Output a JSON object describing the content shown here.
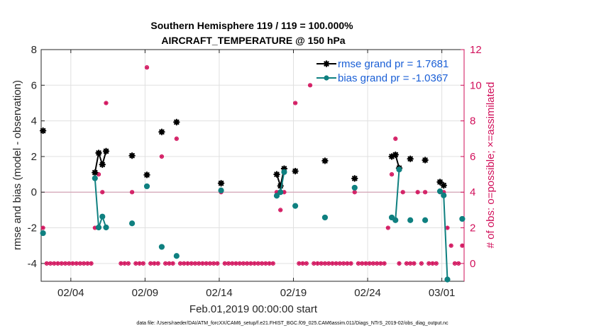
{
  "chart_data": {
    "type": "line",
    "title_line1": "Southern Hemisphere 119 / 119 = 100.000%",
    "title_line2": "AIRCRAFT_TEMPERATURE @ 150 hPa",
    "xlabel": "Feb.01,2019 00:00:00 start",
    "ylabel": "rmse and bias (model - observation)",
    "ylabel_right": "# of obs: o=possible; ×=assimilated",
    "footnote": "data file: /Users/raeder/DAI/ATM_forcXX/CAM6_setup/f.e21.FHIST_BGC.f09_025.CAM6assim.011/Diags_NTrS_2019-02/obs_diag_output.nc",
    "xlim": [
      1,
      29.5
    ],
    "ylim": [
      -5,
      8
    ],
    "ylim_right": [
      -1,
      12
    ],
    "x_ticks": [
      3,
      8,
      13,
      18,
      23,
      28
    ],
    "x_tick_labels": [
      "02/04",
      "02/09",
      "02/14",
      "02/19",
      "02/24",
      "03/01"
    ],
    "y_ticks": [
      -4,
      -2,
      0,
      2,
      4,
      6,
      8
    ],
    "y_tick_labels": [
      "-4",
      "-2",
      "0",
      "2",
      "4",
      "6",
      "8"
    ],
    "y_right_ticks": [
      0,
      2,
      4,
      6,
      8,
      10,
      12
    ],
    "y_right_tick_labels": [
      "0",
      "2",
      "4",
      "6",
      "8",
      "10",
      "12"
    ],
    "grid": true,
    "legend_location": "top-right",
    "colors": {
      "rmse": "#000000",
      "bias": "#0f8080",
      "obs": "#d10f5a",
      "legend_text": "#1a5fd6",
      "grid": "#e0e0e0",
      "zero_line": "#d4a5b6"
    },
    "series": [
      {
        "name": "rmse grand pr = 1.7681",
        "key": "rmse",
        "x": [
          1.125,
          4.625,
          4.875,
          5.125,
          5.375,
          7.125,
          8.125,
          9.125,
          10.125,
          13.125,
          16.875,
          17.125,
          17.375,
          18.125,
          20.125,
          22.125,
          24.625,
          24.875,
          25.125,
          25.875,
          26.875,
          27.875,
          28.125
        ],
        "values": [
          3.45,
          1.1,
          2.2,
          1.55,
          2.3,
          2.05,
          0.97,
          3.38,
          3.93,
          0.5,
          1.0,
          0.35,
          1.32,
          1.18,
          1.76,
          0.77,
          2.0,
          2.1,
          1.35,
          1.87,
          1.8,
          0.57,
          0.38
        ],
        "segments": [
          [
            1,
            2,
            3,
            4
          ],
          [
            10,
            11,
            12
          ],
          [
            16,
            17,
            18
          ],
          [
            21,
            22
          ]
        ]
      },
      {
        "name": "bias grand pr = -1.0367",
        "key": "bias",
        "x": [
          1.125,
          4.625,
          4.875,
          5.125,
          5.375,
          7.125,
          8.125,
          9.125,
          10.125,
          13.125,
          16.875,
          17.125,
          17.375,
          18.125,
          20.125,
          22.125,
          24.625,
          24.875,
          25.125,
          25.875,
          26.875,
          27.875,
          28.125,
          28.375,
          29.375
        ],
        "values": [
          -2.3,
          0.78,
          -1.98,
          -1.37,
          -1.98,
          -1.75,
          0.33,
          -3.07,
          -3.58,
          0.1,
          -0.2,
          0.0,
          1.13,
          -0.77,
          -1.42,
          0.25,
          -1.42,
          -1.57,
          1.27,
          -1.57,
          -1.57,
          0.05,
          -0.18,
          -4.9,
          -1.5
        ],
        "segments": [
          [
            1,
            2,
            3,
            4
          ],
          [
            10,
            11,
            12
          ],
          [
            16,
            17,
            18
          ],
          [
            21,
            22,
            23
          ]
        ]
      }
    ],
    "obs_possible": {
      "x": [
        1.125,
        1.375,
        1.625,
        1.875,
        2.125,
        2.375,
        2.625,
        2.875,
        3.125,
        3.375,
        3.625,
        3.875,
        4.125,
        4.375,
        4.625,
        4.875,
        5.125,
        5.375,
        6.375,
        6.625,
        6.875,
        7.125,
        7.375,
        7.625,
        7.875,
        8.125,
        8.375,
        8.625,
        8.875,
        9.125,
        9.375,
        9.625,
        9.875,
        10.125,
        10.375,
        10.625,
        10.875,
        11.125,
        11.375,
        11.625,
        11.875,
        12.125,
        12.375,
        12.625,
        12.875,
        13.125,
        13.375,
        13.625,
        13.875,
        14.125,
        14.375,
        14.625,
        14.875,
        15.125,
        15.375,
        15.625,
        15.875,
        16.125,
        16.375,
        16.625,
        16.875,
        17.125,
        17.375,
        18.125,
        18.375,
        18.625,
        18.875,
        19.125,
        19.375,
        19.625,
        19.875,
        20.125,
        20.375,
        20.625,
        20.875,
        21.125,
        21.375,
        21.625,
        21.875,
        22.125,
        22.375,
        22.625,
        22.875,
        23.125,
        23.375,
        23.625,
        23.875,
        24.125,
        24.375,
        24.625,
        24.875,
        25.125,
        25.375,
        25.625,
        25.875,
        26.125,
        26.375,
        26.625,
        26.875,
        27.125,
        27.375,
        27.625,
        27.875,
        28.125,
        28.375,
        28.625,
        28.875,
        29.125,
        29.375
      ],
      "values": [
        2,
        0,
        0,
        0,
        0,
        0,
        0,
        0,
        0,
        0,
        0,
        0,
        0,
        0,
        2,
        5,
        4,
        9,
        0,
        0,
        0,
        4,
        0,
        0,
        0,
        11,
        0,
        0,
        0,
        6,
        0,
        0,
        0,
        7,
        0,
        0,
        0,
        0,
        0,
        0,
        0,
        0,
        0,
        0,
        0,
        4,
        0,
        0,
        0,
        0,
        0,
        0,
        0,
        0,
        0,
        0,
        0,
        0,
        0,
        0,
        4,
        3,
        4,
        9,
        0,
        0,
        0,
        10,
        0,
        0,
        0,
        0,
        0,
        0,
        0,
        0,
        0,
        0,
        0,
        4,
        0,
        0,
        0,
        0,
        0,
        0,
        0,
        0,
        2,
        5,
        7,
        0,
        4,
        0,
        0,
        0,
        4,
        0,
        4,
        0,
        0,
        0,
        4,
        4,
        2,
        1,
        0,
        0,
        1
      ]
    },
    "legend": [
      {
        "label": "rmse grand pr = 1.7681",
        "key": "rmse"
      },
      {
        "label": "bias grand pr = -1.0367",
        "key": "bias"
      }
    ]
  }
}
